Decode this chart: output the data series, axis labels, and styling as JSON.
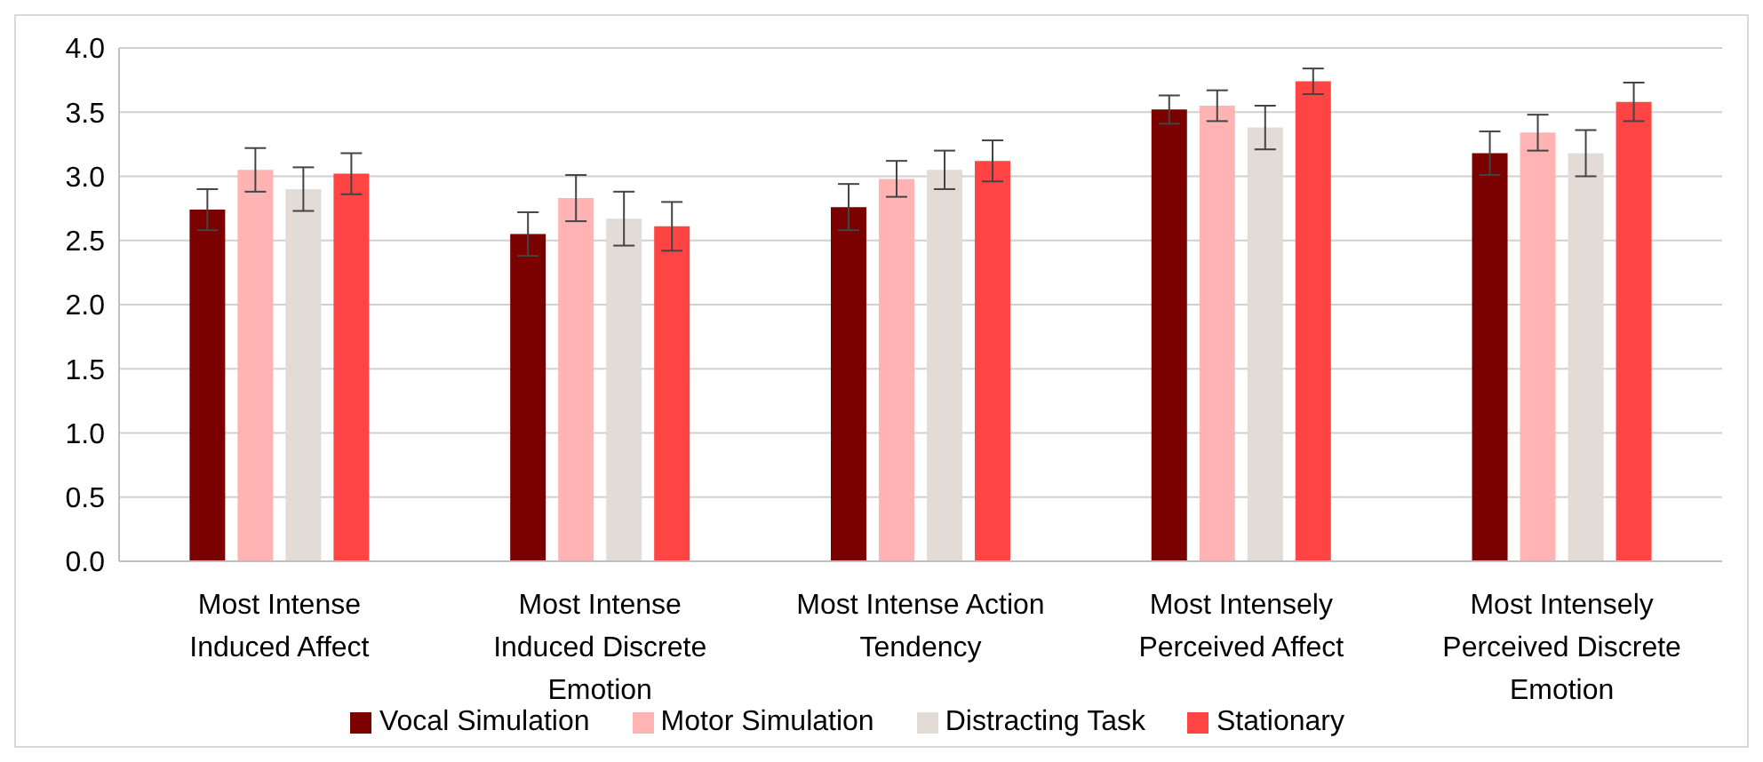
{
  "chart_data": {
    "type": "bar",
    "categories": [
      "Most Intense Induced Affect",
      "Most Intense Induced Discrete Emotion",
      "Most Intense Action Tendency",
      "Most Intensely Perceived Affect",
      "Most Intensely Perceived Discrete Emotion"
    ],
    "series": [
      {
        "name": "Vocal Simulation",
        "color": "#7b0000",
        "values": [
          2.74,
          2.55,
          2.76,
          3.52,
          3.18
        ],
        "errors": [
          0.16,
          0.17,
          0.18,
          0.11,
          0.17
        ]
      },
      {
        "name": "Motor Simulation",
        "color": "#ffb3b3",
        "values": [
          3.05,
          2.83,
          2.98,
          3.55,
          3.34
        ],
        "errors": [
          0.17,
          0.18,
          0.14,
          0.12,
          0.14
        ]
      },
      {
        "name": "Distracting Task",
        "color": "#e2dbd6",
        "values": [
          2.9,
          2.67,
          3.05,
          3.38,
          3.18
        ],
        "errors": [
          0.17,
          0.21,
          0.15,
          0.17,
          0.18
        ]
      },
      {
        "name": "Stationary",
        "color": "#ff4444",
        "values": [
          3.02,
          2.61,
          3.12,
          3.74,
          3.58
        ],
        "errors": [
          0.16,
          0.19,
          0.16,
          0.1,
          0.15
        ]
      }
    ],
    "ylim": [
      0,
      4
    ],
    "yticks": [
      {
        "value": 0,
        "label": "0.0"
      },
      0.5,
      {
        "value": 1,
        "label": "1.0"
      },
      1.5,
      {
        "value": 2,
        "label": "2.0"
      },
      2.5,
      {
        "value": 3,
        "label": "3.0"
      },
      3.5,
      {
        "value": 4,
        "label": "4.0"
      }
    ],
    "grid": "y",
    "legend": "bottom"
  }
}
